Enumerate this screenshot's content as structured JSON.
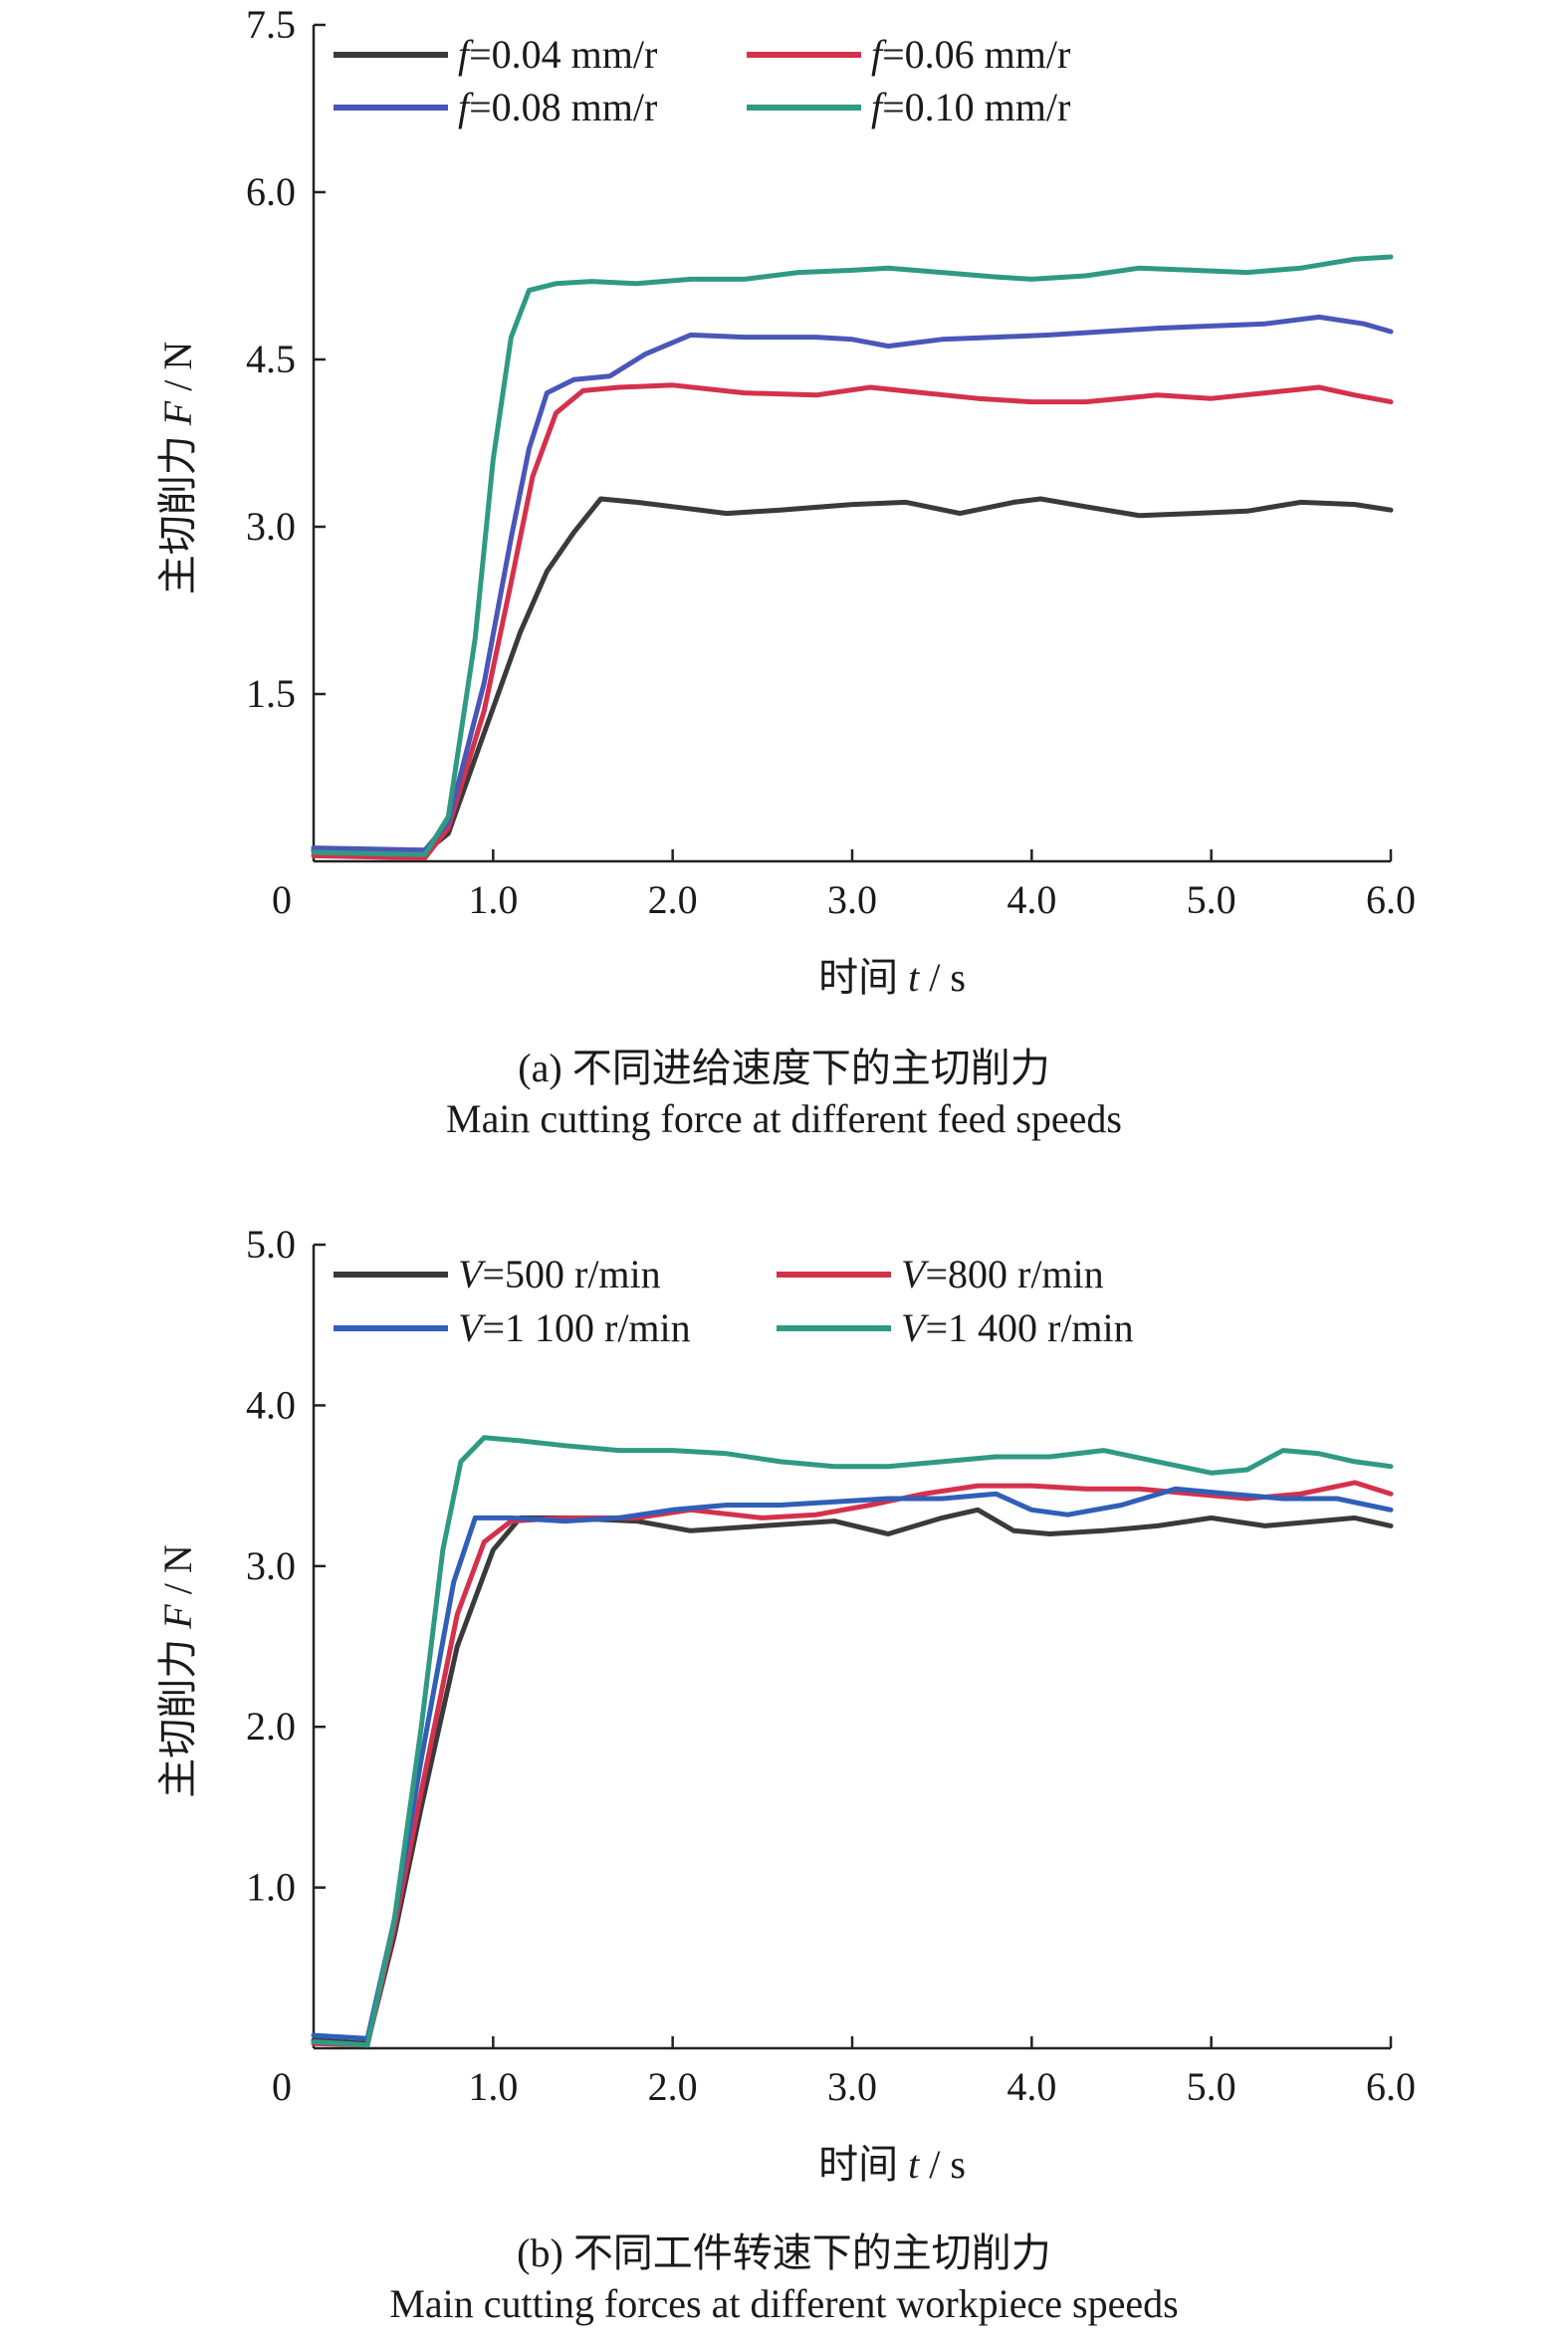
{
  "chart_data": [
    {
      "type": "line",
      "panel": "a",
      "ylabel_cn": "主切削力",
      "ylabel_var": "F",
      "ylabel_unit": " / N",
      "xlabel_cn": "时间",
      "xlabel_var": "t",
      "xlabel_unit": " / s",
      "xlim": [
        0,
        6.0
      ],
      "ylim": [
        0,
        7.5
      ],
      "xticks": [
        "0",
        "1.0",
        "2.0",
        "3.0",
        "4.0",
        "5.0",
        "6.0"
      ],
      "yticks": [
        "1.5",
        "3.0",
        "4.5",
        "6.0",
        "7.5"
      ],
      "caption_cn": "(a) 不同进给速度下的主切削力",
      "caption_en": "Main cutting force at different feed speeds",
      "legend_placement": "top-left",
      "series": [
        {
          "name_var": "f",
          "name_rest": "=0.04 mm/r",
          "color": "#3a3a3a",
          "points": [
            [
              0,
              0.1
            ],
            [
              0.62,
              0.08
            ],
            [
              0.75,
              0.25
            ],
            [
              0.95,
              1.15
            ],
            [
              1.15,
              2.05
            ],
            [
              1.3,
              2.6
            ],
            [
              1.45,
              2.95
            ],
            [
              1.6,
              3.25
            ],
            [
              1.8,
              3.22
            ],
            [
              2.0,
              3.18
            ],
            [
              2.3,
              3.12
            ],
            [
              2.6,
              3.15
            ],
            [
              3.0,
              3.2
            ],
            [
              3.3,
              3.22
            ],
            [
              3.6,
              3.12
            ],
            [
              3.9,
              3.22
            ],
            [
              4.05,
              3.25
            ],
            [
              4.3,
              3.18
            ],
            [
              4.6,
              3.1
            ],
            [
              4.9,
              3.12
            ],
            [
              5.2,
              3.14
            ],
            [
              5.5,
              3.22
            ],
            [
              5.8,
              3.2
            ],
            [
              6.0,
              3.15
            ]
          ]
        },
        {
          "name_var": "f",
          "name_rest": "=0.06 mm/r",
          "color": "#d4314c",
          "points": [
            [
              0,
              0.05
            ],
            [
              0.62,
              0.03
            ],
            [
              0.75,
              0.3
            ],
            [
              0.95,
              1.35
            ],
            [
              1.1,
              2.5
            ],
            [
              1.22,
              3.45
            ],
            [
              1.35,
              4.02
            ],
            [
              1.5,
              4.22
            ],
            [
              1.7,
              4.25
            ],
            [
              2.0,
              4.27
            ],
            [
              2.4,
              4.2
            ],
            [
              2.8,
              4.18
            ],
            [
              3.1,
              4.25
            ],
            [
              3.4,
              4.2
            ],
            [
              3.7,
              4.15
            ],
            [
              4.0,
              4.12
            ],
            [
              4.3,
              4.12
            ],
            [
              4.7,
              4.18
            ],
            [
              5.0,
              4.15
            ],
            [
              5.3,
              4.2
            ],
            [
              5.6,
              4.25
            ],
            [
              5.8,
              4.18
            ],
            [
              6.0,
              4.12
            ]
          ]
        },
        {
          "name_var": "f",
          "name_rest": "=0.08 mm/r",
          "color": "#4a56b8",
          "points": [
            [
              0,
              0.12
            ],
            [
              0.62,
              0.1
            ],
            [
              0.75,
              0.35
            ],
            [
              0.95,
              1.6
            ],
            [
              1.1,
              2.9
            ],
            [
              1.2,
              3.7
            ],
            [
              1.3,
              4.2
            ],
            [
              1.45,
              4.32
            ],
            [
              1.65,
              4.35
            ],
            [
              1.85,
              4.55
            ],
            [
              2.1,
              4.72
            ],
            [
              2.4,
              4.7
            ],
            [
              2.8,
              4.7
            ],
            [
              3.0,
              4.68
            ],
            [
              3.2,
              4.62
            ],
            [
              3.5,
              4.68
            ],
            [
              3.8,
              4.7
            ],
            [
              4.1,
              4.72
            ],
            [
              4.4,
              4.75
            ],
            [
              4.7,
              4.78
            ],
            [
              5.0,
              4.8
            ],
            [
              5.3,
              4.82
            ],
            [
              5.6,
              4.88
            ],
            [
              5.85,
              4.82
            ],
            [
              6.0,
              4.75
            ]
          ]
        },
        {
          "name_var": "f",
          "name_rest": "=0.10 mm/r",
          "color": "#2f9a84",
          "points": [
            [
              0,
              0.08
            ],
            [
              0.62,
              0.06
            ],
            [
              0.75,
              0.4
            ],
            [
              0.9,
              2.0
            ],
            [
              1.0,
              3.6
            ],
            [
              1.1,
              4.7
            ],
            [
              1.2,
              5.12
            ],
            [
              1.35,
              5.18
            ],
            [
              1.55,
              5.2
            ],
            [
              1.8,
              5.18
            ],
            [
              2.1,
              5.22
            ],
            [
              2.4,
              5.22
            ],
            [
              2.7,
              5.28
            ],
            [
              3.0,
              5.3
            ],
            [
              3.2,
              5.32
            ],
            [
              3.5,
              5.28
            ],
            [
              3.8,
              5.24
            ],
            [
              4.0,
              5.22
            ],
            [
              4.3,
              5.25
            ],
            [
              4.6,
              5.32
            ],
            [
              4.9,
              5.3
            ],
            [
              5.2,
              5.28
            ],
            [
              5.5,
              5.32
            ],
            [
              5.8,
              5.4
            ],
            [
              6.0,
              5.42
            ]
          ]
        }
      ]
    },
    {
      "type": "line",
      "panel": "b",
      "ylabel_cn": "主切削力",
      "ylabel_var": "F",
      "ylabel_unit": " / N",
      "xlabel_cn": "时间",
      "xlabel_var": "t",
      "xlabel_unit": " / s",
      "xlim": [
        0,
        6.0
      ],
      "ylim": [
        0,
        5.0
      ],
      "xticks": [
        "0",
        "1.0",
        "2.0",
        "3.0",
        "4.0",
        "5.0",
        "6.0"
      ],
      "yticks": [
        "1.0",
        "2.0",
        "3.0",
        "4.0",
        "5.0"
      ],
      "caption_cn": "(b) 不同工件转速下的主切削力",
      "caption_en": "Main cutting forces at different workpiece speeds",
      "legend_placement": "top-left",
      "series": [
        {
          "name_var": "V",
          "name_rest": "=500 r/min",
          "color": "#3a3a3a",
          "points": [
            [
              0,
              0.05
            ],
            [
              0.3,
              0.03
            ],
            [
              0.45,
              0.7
            ],
            [
              0.6,
              1.5
            ],
            [
              0.8,
              2.5
            ],
            [
              1.0,
              3.1
            ],
            [
              1.15,
              3.3
            ],
            [
              1.4,
              3.3
            ],
            [
              1.8,
              3.28
            ],
            [
              2.1,
              3.22
            ],
            [
              2.5,
              3.25
            ],
            [
              2.9,
              3.28
            ],
            [
              3.2,
              3.2
            ],
            [
              3.5,
              3.3
            ],
            [
              3.7,
              3.35
            ],
            [
              3.9,
              3.22
            ],
            [
              4.1,
              3.2
            ],
            [
              4.4,
              3.22
            ],
            [
              4.7,
              3.25
            ],
            [
              5.0,
              3.3
            ],
            [
              5.3,
              3.25
            ],
            [
              5.6,
              3.28
            ],
            [
              5.8,
              3.3
            ],
            [
              6.0,
              3.25
            ]
          ]
        },
        {
          "name_var": "V",
          "name_rest": "=800 r/min",
          "color": "#d4314c",
          "points": [
            [
              0,
              0.03
            ],
            [
              0.3,
              0.02
            ],
            [
              0.45,
              0.75
            ],
            [
              0.6,
              1.6
            ],
            [
              0.8,
              2.7
            ],
            [
              0.95,
              3.15
            ],
            [
              1.1,
              3.28
            ],
            [
              1.4,
              3.3
            ],
            [
              1.8,
              3.3
            ],
            [
              2.1,
              3.35
            ],
            [
              2.5,
              3.3
            ],
            [
              2.8,
              3.32
            ],
            [
              3.1,
              3.38
            ],
            [
              3.4,
              3.45
            ],
            [
              3.7,
              3.5
            ],
            [
              4.0,
              3.5
            ],
            [
              4.3,
              3.48
            ],
            [
              4.6,
              3.48
            ],
            [
              4.9,
              3.45
            ],
            [
              5.2,
              3.42
            ],
            [
              5.5,
              3.45
            ],
            [
              5.8,
              3.52
            ],
            [
              6.0,
              3.45
            ]
          ]
        },
        {
          "name_var": "V",
          "name_rest": "=1 100 r/min",
          "color": "#2f5fb8",
          "points": [
            [
              0,
              0.08
            ],
            [
              0.3,
              0.06
            ],
            [
              0.45,
              0.8
            ],
            [
              0.6,
              1.8
            ],
            [
              0.78,
              2.9
            ],
            [
              0.9,
              3.3
            ],
            [
              1.1,
              3.3
            ],
            [
              1.4,
              3.28
            ],
            [
              1.7,
              3.3
            ],
            [
              2.0,
              3.35
            ],
            [
              2.3,
              3.38
            ],
            [
              2.6,
              3.38
            ],
            [
              2.9,
              3.4
            ],
            [
              3.2,
              3.42
            ],
            [
              3.5,
              3.42
            ],
            [
              3.8,
              3.45
            ],
            [
              4.0,
              3.35
            ],
            [
              4.2,
              3.32
            ],
            [
              4.5,
              3.38
            ],
            [
              4.8,
              3.48
            ],
            [
              5.1,
              3.45
            ],
            [
              5.4,
              3.42
            ],
            [
              5.7,
              3.42
            ],
            [
              6.0,
              3.35
            ]
          ]
        },
        {
          "name_var": "V",
          "name_rest": "=1 400 r/min",
          "color": "#2f9a84",
          "points": [
            [
              0,
              0.04
            ],
            [
              0.3,
              0.02
            ],
            [
              0.45,
              0.8
            ],
            [
              0.6,
              2.0
            ],
            [
              0.72,
              3.1
            ],
            [
              0.82,
              3.65
            ],
            [
              0.95,
              3.8
            ],
            [
              1.15,
              3.78
            ],
            [
              1.4,
              3.75
            ],
            [
              1.7,
              3.72
            ],
            [
              2.0,
              3.72
            ],
            [
              2.3,
              3.7
            ],
            [
              2.6,
              3.65
            ],
            [
              2.9,
              3.62
            ],
            [
              3.2,
              3.62
            ],
            [
              3.5,
              3.65
            ],
            [
              3.8,
              3.68
            ],
            [
              4.1,
              3.68
            ],
            [
              4.4,
              3.72
            ],
            [
              4.7,
              3.65
            ],
            [
              5.0,
              3.58
            ],
            [
              5.2,
              3.6
            ],
            [
              5.4,
              3.72
            ],
            [
              5.6,
              3.7
            ],
            [
              5.8,
              3.65
            ],
            [
              6.0,
              3.62
            ]
          ]
        }
      ]
    }
  ]
}
